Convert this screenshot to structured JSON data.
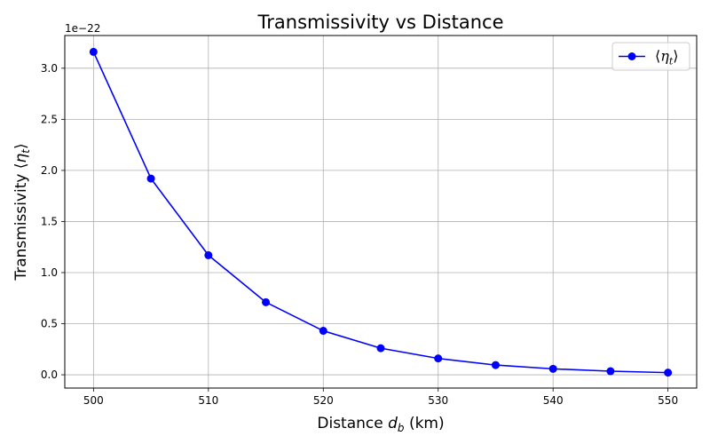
{
  "chart_data": {
    "type": "line",
    "title": "Transmissivity vs Distance",
    "xlabel": "Distance d_b (km)",
    "xlabel_parts": {
      "pre": "Distance ",
      "var": "d",
      "sub": "b",
      "post": " (km)"
    },
    "ylabel": "Transmissivity ⟨η_t⟩",
    "ylabel_parts": {
      "pre": "Transmissivity ",
      "open": "⟨",
      "var": "η",
      "sub": "t",
      "close": "⟩"
    },
    "y_offset_text": "1e−22",
    "x": [
      500,
      505,
      510,
      515,
      520,
      525,
      530,
      535,
      540,
      545,
      550
    ],
    "series": [
      {
        "name": "⟨η_t⟩",
        "name_parts": {
          "open": "⟨",
          "var": "η",
          "sub": "t",
          "close": "⟩"
        },
        "values": [
          3.16,
          1.92,
          1.17,
          0.71,
          0.43,
          0.26,
          0.16,
          0.095,
          0.058,
          0.035,
          0.021
        ],
        "color": "#0000ff",
        "marker": "circle"
      }
    ],
    "xlim": [
      497.5,
      552.5
    ],
    "ylim": [
      -0.13,
      3.32
    ],
    "xticks": [
      500,
      510,
      520,
      530,
      540,
      550
    ],
    "yticks": [
      0.0,
      0.5,
      1.0,
      1.5,
      2.0,
      2.5,
      3.0
    ],
    "ytick_labels": [
      "0.0",
      "0.5",
      "1.0",
      "1.5",
      "2.0",
      "2.5",
      "3.0"
    ],
    "grid": true,
    "grid_color": "#b0b0b0",
    "legend_position": "upper right"
  }
}
